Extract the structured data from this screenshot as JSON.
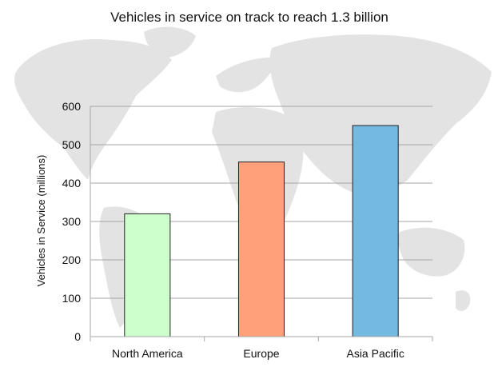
{
  "chart_data": {
    "type": "bar",
    "title": "Vehicles in service on track to reach 1.3 billion",
    "xlabel": "",
    "ylabel": "Vehicles in Service (millions)",
    "categories": [
      "North America",
      "Europe",
      "Asia Pacific"
    ],
    "values": [
      320,
      455,
      550
    ],
    "colors": [
      "#ccffcc",
      "#ffa07a",
      "#74b9e0"
    ],
    "ylim": [
      0,
      600
    ],
    "yticks": [
      "0",
      "100",
      "200",
      "300",
      "400",
      "500",
      "600"
    ],
    "grid": true,
    "legend": "none",
    "background": "world-map"
  }
}
